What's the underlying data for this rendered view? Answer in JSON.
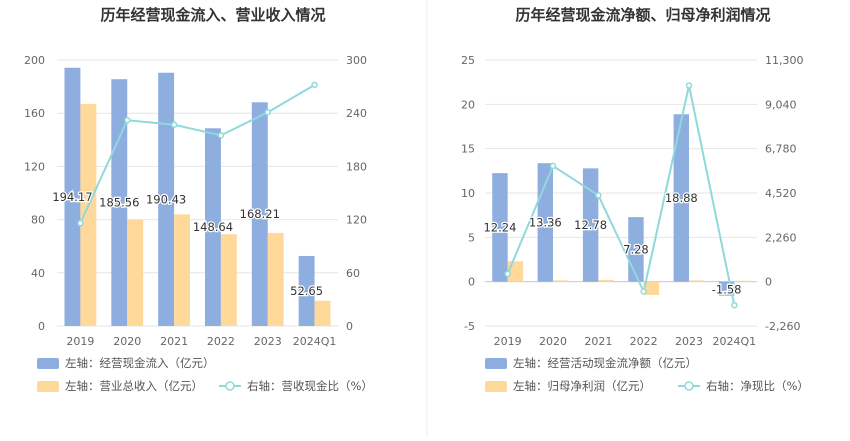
{
  "chart_data": [
    {
      "type": "bar",
      "title": "历年经营现金流入、营业收入情况",
      "categories": [
        "2019",
        "2020",
        "2021",
        "2022",
        "2023",
        "2024Q1"
      ],
      "y_left": {
        "ticks": [
          "0",
          "40",
          "80",
          "120",
          "160",
          "200"
        ],
        "ylim": [
          0,
          200
        ]
      },
      "y_right": {
        "ticks": [
          "0",
          "60",
          "120",
          "180",
          "240",
          "300"
        ],
        "ylim": [
          0,
          300
        ]
      },
      "series": [
        {
          "name": "经营现金流入（亿元）",
          "axis": "left",
          "kind": "bar",
          "color": "#8eaedf",
          "values": [
            194.17,
            185.56,
            190.43,
            148.64,
            168.21,
            52.65
          ],
          "labels": [
            "194.17",
            "185.56",
            "190.43",
            "148.64",
            "168.21",
            "52.65"
          ]
        },
        {
          "name": "营业总收入（亿元）",
          "axis": "left",
          "kind": "bar",
          "color": "#ffd99a",
          "values": [
            167,
            80,
            84,
            69,
            70,
            19
          ]
        },
        {
          "name": "营收现金比（%）",
          "axis": "right",
          "kind": "line",
          "color": "#8fd9dc",
          "values": [
            116,
            232,
            227,
            215,
            241,
            272
          ]
        }
      ],
      "legend": [
        {
          "prefix": "左轴：",
          "text": "经营现金流入（亿元）",
          "kind": "bar",
          "color": "#8eaedf"
        },
        {
          "prefix": "左轴：",
          "text": "营业总收入（亿元）",
          "kind": "bar",
          "color": "#ffd99a"
        },
        {
          "prefix": "右轴：",
          "text": "营收现金比（%）",
          "kind": "line",
          "color": "#8fd9dc"
        }
      ],
      "grid": true,
      "legend_placement": "bottom"
    },
    {
      "type": "bar",
      "title": "历年经营现金流净额、归母净利润情况",
      "categories": [
        "2019",
        "2020",
        "2021",
        "2022",
        "2023",
        "2024Q1"
      ],
      "y_left": {
        "ticks": [
          "-5",
          "0",
          "5",
          "10",
          "15",
          "20",
          "25"
        ],
        "ylim": [
          -5,
          25
        ]
      },
      "y_right": {
        "ticks": [
          "-2,260",
          "0",
          "2,260",
          "4,520",
          "6,780",
          "9,040",
          "11,300"
        ],
        "ylim": [
          -2260,
          11300
        ]
      },
      "series": [
        {
          "name": "经营活动现金流净额（亿元）",
          "axis": "left",
          "kind": "bar",
          "color": "#8eaedf",
          "values": [
            12.24,
            13.36,
            12.78,
            7.28,
            18.88,
            -1.58
          ],
          "labels": [
            "12.24",
            "13.36",
            "12.78",
            "7.28",
            "18.88",
            "-1.58"
          ]
        },
        {
          "name": "归母净利润（亿元）",
          "axis": "left",
          "kind": "bar",
          "color": "#ffd99a",
          "values": [
            2.3,
            0.15,
            0.2,
            -1.5,
            0.15,
            0.1
          ]
        },
        {
          "name": "净现比（%）",
          "axis": "right",
          "kind": "line",
          "color": "#8fd9dc",
          "values": [
            400,
            5900,
            4400,
            -500,
            10000,
            -1200
          ]
        }
      ],
      "legend": [
        {
          "prefix": "左轴：",
          "text": "经营活动现金流净额（亿元）",
          "kind": "bar",
          "color": "#8eaedf"
        },
        {
          "prefix": "左轴：",
          "text": "归母净利润（亿元）",
          "kind": "bar",
          "color": "#ffd99a"
        },
        {
          "prefix": "右轴：",
          "text": "净现比（%）",
          "kind": "line",
          "color": "#8fd9dc"
        }
      ],
      "grid": true,
      "legend_placement": "bottom"
    }
  ]
}
